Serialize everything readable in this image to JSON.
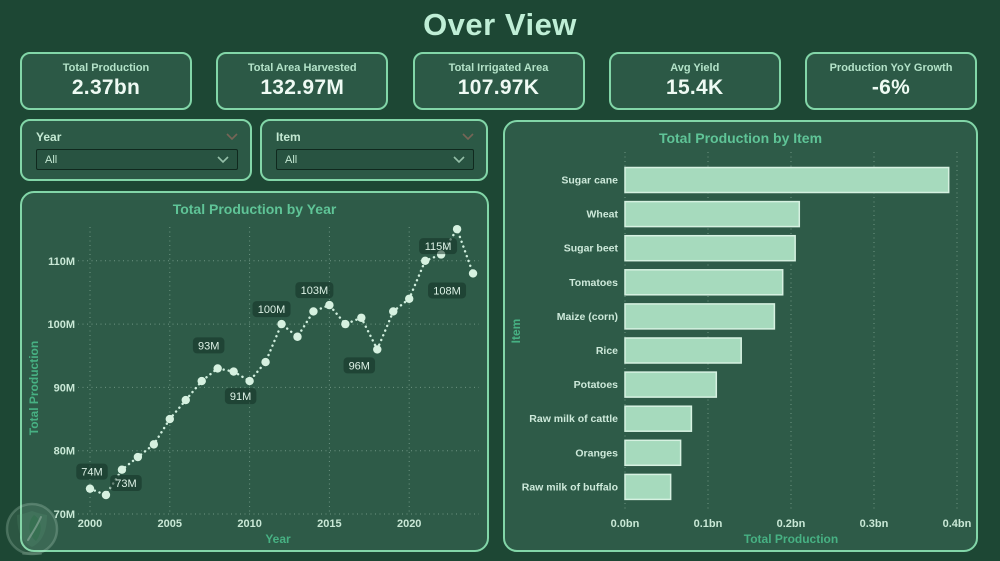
{
  "page": {
    "title": "Over View"
  },
  "theme": {
    "background": "#1d4734",
    "panel": "#2e5b48",
    "panel_border": "#82d6a8",
    "chart_title": "#5fc497",
    "axis_title": "#47b183",
    "tick_label": "#c9e8d6",
    "line_color": "#cfeedd",
    "bar_fill": "#a6dabd",
    "bar_border": "#d6f1e1",
    "kpi_label": "#b3e2c8",
    "kpi_value": "#eefaf3"
  },
  "kpis": [
    {
      "label": "Total Production",
      "value": "2.37bn"
    },
    {
      "label": "Total Area Harvested",
      "value": "132.97M"
    },
    {
      "label": "Total Irrigated Area",
      "value": "107.97K"
    },
    {
      "label": "Avg Yield",
      "value": "15.4K"
    },
    {
      "label": "Production YoY Growth",
      "value": "-6%"
    }
  ],
  "slicers": [
    {
      "label": "Year",
      "value": "All"
    },
    {
      "label": "Item",
      "value": "All"
    }
  ],
  "chart_data": [
    {
      "type": "line",
      "title": "Total Production by Year",
      "xlabel": "Year",
      "ylabel": "Total Production",
      "x": [
        2000,
        2001,
        2002,
        2003,
        2004,
        2005,
        2006,
        2007,
        2008,
        2009,
        2010,
        2011,
        2012,
        2013,
        2014,
        2015,
        2016,
        2017,
        2018,
        2019,
        2020,
        2021,
        2022,
        2023,
        2024
      ],
      "values": [
        74,
        73,
        77,
        79,
        81,
        85,
        88,
        91,
        93,
        92.5,
        91,
        94,
        100,
        98,
        102,
        103,
        100,
        101,
        96,
        102,
        104,
        110,
        111,
        115,
        108
      ],
      "unit": "M",
      "xticks": [
        2000,
        2005,
        2010,
        2015,
        2020
      ],
      "yticks": [
        70,
        80,
        90,
        100,
        110
      ],
      "ytick_labels": [
        "70M",
        "80M",
        "90M",
        "100M",
        "110M"
      ],
      "ylim": [
        70,
        117
      ],
      "grid": "dotted",
      "legend": "none",
      "point_labels": [
        {
          "x": 2000,
          "text": "74M"
        },
        {
          "x": 2001,
          "text": "73M"
        },
        {
          "x": 2008,
          "text": "93M"
        },
        {
          "x": 2010,
          "text": "91M"
        },
        {
          "x": 2012,
          "text": "100M"
        },
        {
          "x": 2015,
          "text": "103M"
        },
        {
          "x": 2018,
          "text": "96M"
        },
        {
          "x": 2023,
          "text": "115M"
        },
        {
          "x": 2024,
          "text": "108M"
        }
      ]
    },
    {
      "type": "bar",
      "orientation": "horizontal",
      "title": "Total Production by Item",
      "xlabel": "Total Production",
      "ylabel": "Item",
      "categories": [
        "Sugar cane",
        "Wheat",
        "Sugar beet",
        "Tomatoes",
        "Maize (corn)",
        "Rice",
        "Potatoes",
        "Raw milk of cattle",
        "Oranges",
        "Raw milk of buffalo"
      ],
      "values": [
        0.39,
        0.21,
        0.205,
        0.19,
        0.18,
        0.14,
        0.11,
        0.08,
        0.067,
        0.055
      ],
      "unit": "bn",
      "xticks": [
        0,
        0.1,
        0.2,
        0.3,
        0.4
      ],
      "xtick_labels": [
        "0.0bn",
        "0.1bn",
        "0.2bn",
        "0.3bn",
        "0.4bn"
      ],
      "xlim": [
        0,
        0.43
      ],
      "grid": "dotted",
      "legend": "none"
    }
  ]
}
